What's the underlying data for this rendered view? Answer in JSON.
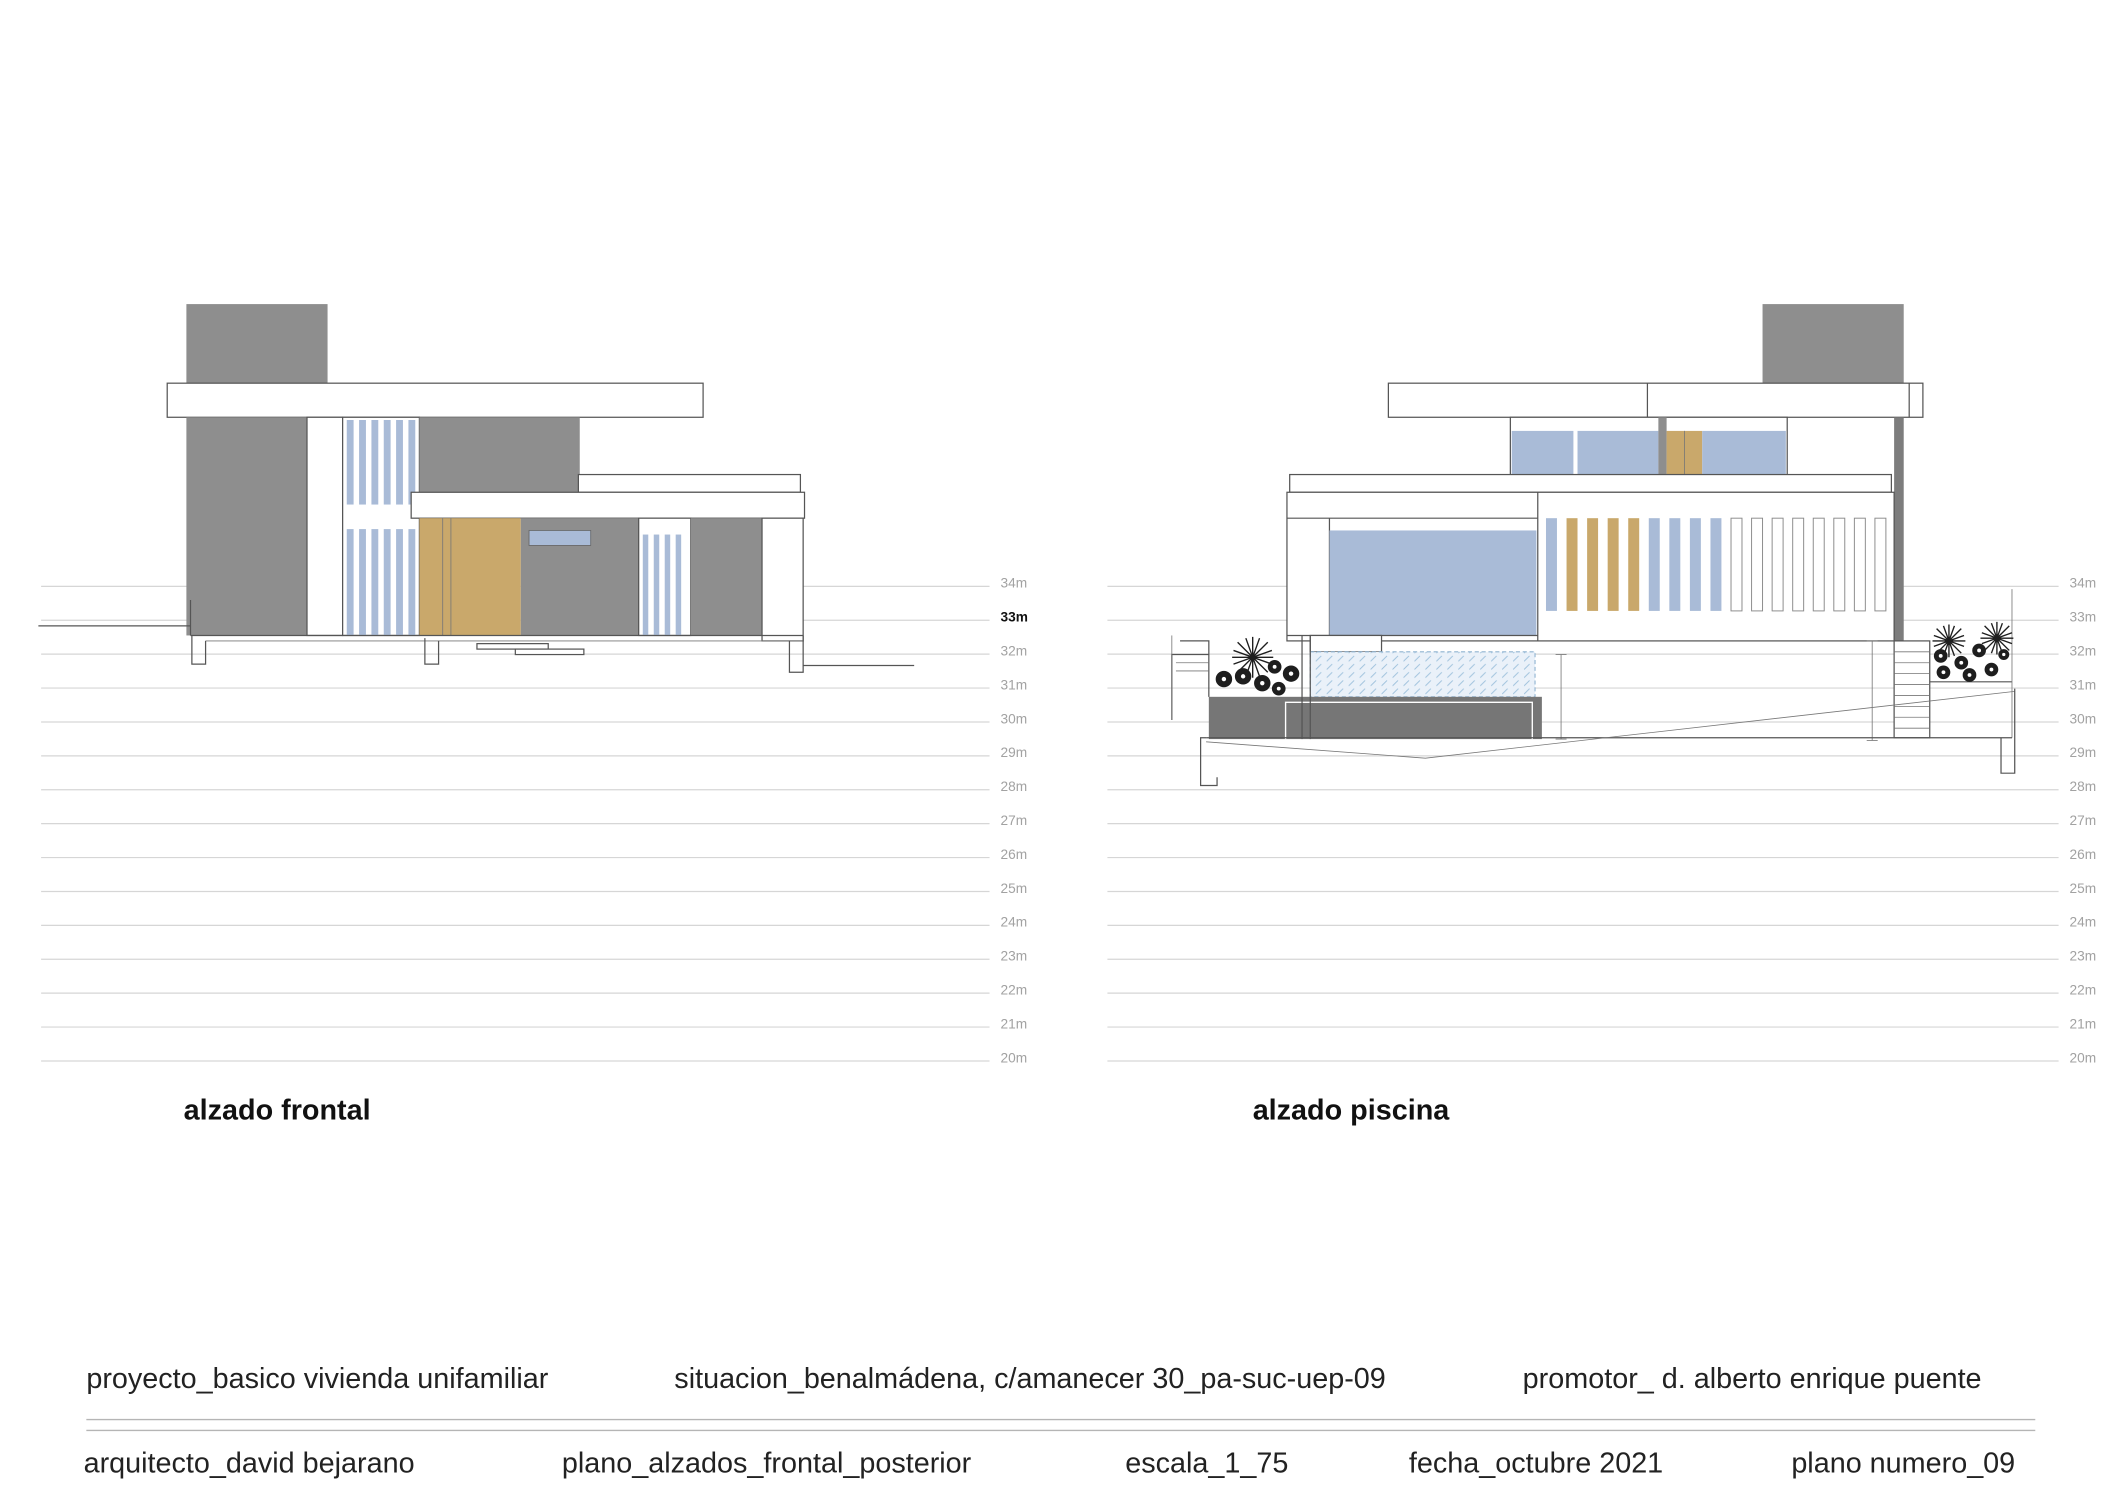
{
  "drawings": [
    {
      "title": "alzado frontal"
    },
    {
      "title": "alzado piscina"
    }
  ],
  "levels": [
    "34m",
    "33m",
    "32m",
    "31m",
    "30m",
    "29m",
    "28m",
    "27m",
    "26m",
    "25m",
    "24m",
    "23m",
    "22m",
    "21m",
    "20m"
  ],
  "title_block": {
    "row1": {
      "project": "proyecto_basico vivienda unifamiliar",
      "location": "situacion_benalmádena, c/amanecer 30_pa-suc-uep-09",
      "promoter": "promotor_ d. alberto enrique puente"
    },
    "row2": {
      "architect": "arquitecto_david bejarano",
      "plan": "plano_alzados_frontal_posterior",
      "scale": "escala_1_75",
      "date": "fecha_octubre 2021",
      "sheet_number": "plano numero_09"
    }
  },
  "colors": {
    "wall_gray": "#8e8e8e",
    "pool_gray": "#767676",
    "glass_blue": "#a9bbd7",
    "wood_gold": "#c9a86b",
    "line": "#555555"
  }
}
